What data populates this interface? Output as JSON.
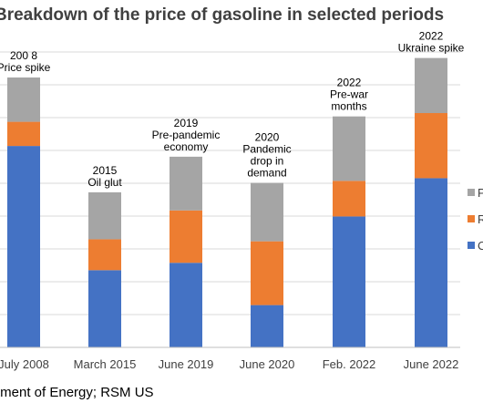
{
  "chart_data": {
    "type": "bar",
    "stacked": true,
    "title": "Breakdown of the price of gasoline in selected periods",
    "categories": [
      "July 2008",
      "March 2015",
      "June 2019",
      "June 2020",
      "Feb. 2022",
      "June 2022"
    ],
    "annotations": [
      [
        "200 8",
        "Price spike"
      ],
      [
        "2015",
        "Oil glut"
      ],
      [
        "2019",
        "Pre-pandemic",
        "economy"
      ],
      [
        "2020",
        "Pandemic",
        "drop in",
        "demand"
      ],
      [
        "2022",
        "Pre-war",
        "months"
      ],
      [
        "2022",
        "Ukraine spike"
      ]
    ],
    "series": [
      {
        "legend_fragment": "C",
        "color": "#4472C4",
        "values": [
          3.0,
          1.15,
          1.26,
          0.63,
          1.95,
          2.52
        ]
      },
      {
        "legend_fragment": "R",
        "color": "#ED7D31",
        "values": [
          0.36,
          0.46,
          0.78,
          0.95,
          0.53,
          0.97
        ]
      },
      {
        "legend_fragment": "P",
        "color": "#A5A5A5",
        "values": [
          0.66,
          0.7,
          0.8,
          0.87,
          0.96,
          0.82
        ]
      }
    ],
    "ylim": [
      0,
      4.4
    ],
    "grid": true,
    "legend_position": "right"
  },
  "source_note": "rtment of Energy; RSM US"
}
